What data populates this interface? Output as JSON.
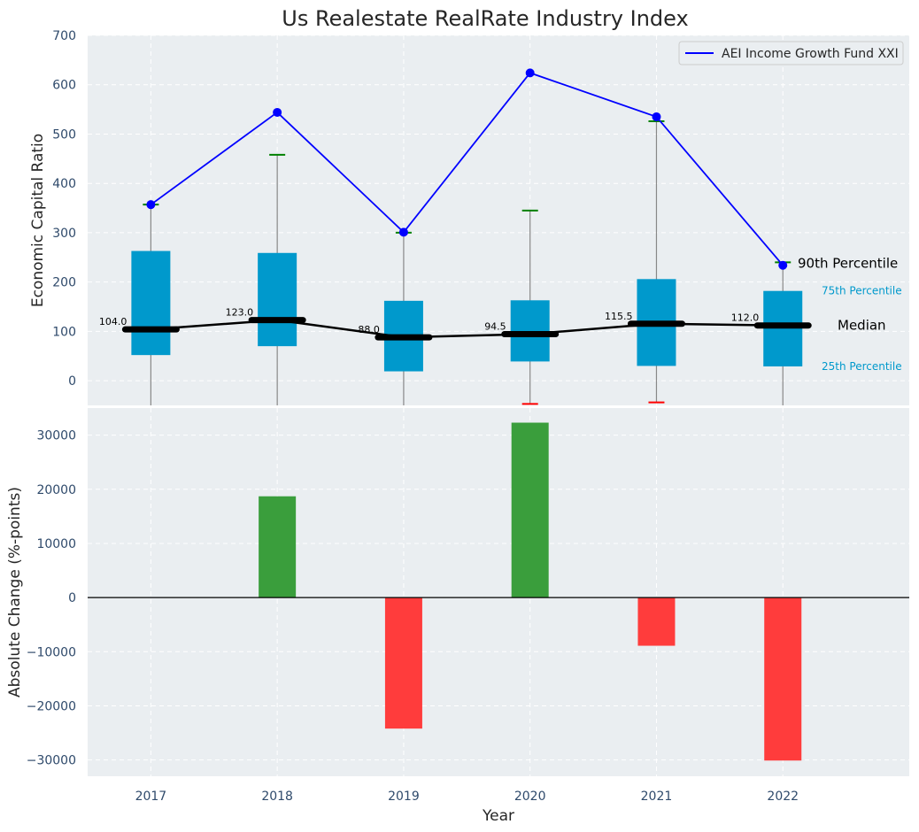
{
  "colors": {
    "panel_bg": "#eaeef1",
    "grid": "#ffffff",
    "box_fill": "#0099cc",
    "whisker": "#888888",
    "cap_high": "#008000",
    "cap_low": "#ff0000",
    "line_color": "#0000ff",
    "median_color": "#000000",
    "bar_pos": "#3a9e3c",
    "bar_neg": "#ff3c3c",
    "annot_blue": "#0099cc"
  },
  "chart_data": [
    {
      "type": "box_line",
      "title": "Us Realestate RealRate Industry Index",
      "ylabel": "Economic Capital Ratio",
      "xlabel": "",
      "ylim": [
        -50,
        700
      ],
      "yticks": [
        0,
        100,
        200,
        300,
        400,
        500,
        600,
        700
      ],
      "ytick_labels": [
        "0",
        "100",
        "200",
        "300",
        "400",
        "500",
        "600",
        "700"
      ],
      "categories": [
        "2017",
        "2018",
        "2019",
        "2020",
        "2021",
        "2022"
      ],
      "grid": true,
      "boxes": [
        {
          "year": "2017",
          "p10": -50,
          "p25": 52,
          "median": 104.0,
          "median_label": "104.0",
          "p75": 263,
          "p90": 357
        },
        {
          "year": "2018",
          "p10": -50,
          "p25": 70,
          "median": 123.0,
          "median_label": "123.0",
          "p75": 259,
          "p90": 458
        },
        {
          "year": "2019",
          "p10": -50,
          "p25": 19,
          "median": 88.0,
          "median_label": "88.0",
          "p75": 162,
          "p90": 300
        },
        {
          "year": "2020",
          "p10": -47,
          "p25": 39,
          "median": 94.5,
          "median_label": "94.5",
          "p75": 163,
          "p90": 345
        },
        {
          "year": "2021",
          "p10": -44,
          "p25": 30,
          "median": 115.5,
          "median_label": "115.5",
          "p75": 206,
          "p90": 526
        },
        {
          "year": "2022",
          "p10": -50,
          "p25": 29,
          "median": 112.0,
          "median_label": "112.0",
          "p75": 182,
          "p90": 240
        }
      ],
      "series": [
        {
          "name": "AEI Income Growth Fund XXI",
          "values": [
            357,
            544,
            301,
            624,
            535,
            234
          ]
        }
      ],
      "legend": {
        "position": "top-right",
        "entries": [
          "AEI Income Growth Fund XXI"
        ]
      },
      "annotations": {
        "p90": "90th Percentile",
        "p75": "75th Percentile",
        "median": "Median",
        "p25": "25th Percentile"
      },
      "annotation_values": {
        "p90": 240,
        "p75": 182,
        "median": 112,
        "p25": 29
      }
    },
    {
      "type": "bar",
      "title": "",
      "ylabel": "Absolute Change (%-points)",
      "xlabel": "Year",
      "ylim": [
        -33000,
        35000
      ],
      "yticks": [
        -30000,
        -20000,
        -10000,
        0,
        10000,
        20000,
        30000
      ],
      "ytick_labels": [
        "−30000",
        "−20000",
        "−10000",
        "0",
        "10000",
        "20000",
        "30000"
      ],
      "categories": [
        "2017",
        "2018",
        "2019",
        "2020",
        "2021",
        "2022"
      ],
      "values": [
        0,
        18700,
        -24200,
        32300,
        -8900,
        -30100
      ],
      "grid": true
    }
  ]
}
